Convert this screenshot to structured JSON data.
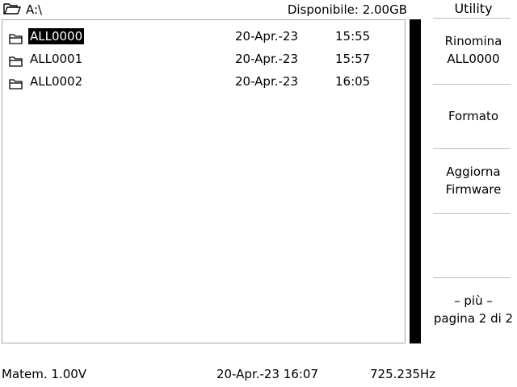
{
  "header": {
    "path": "A:\\",
    "available": "Disponibile: 2.00GB"
  },
  "files": [
    {
      "name": "ALL0000",
      "date": "20-Apr.-23",
      "time": "15:55",
      "selected": true
    },
    {
      "name": "ALL0001",
      "date": "20-Apr.-23",
      "time": "15:57",
      "selected": false
    },
    {
      "name": "ALL0002",
      "date": "20-Apr.-23",
      "time": "16:05",
      "selected": false
    }
  ],
  "menu": {
    "title": "Utility",
    "keys": [
      {
        "line1": "Rinomina",
        "line2": "ALL0000"
      },
      {
        "line1": "Formato",
        "line2": ""
      },
      {
        "line1": "Aggiorna",
        "line2": "Firmware"
      },
      {
        "line1": "",
        "line2": ""
      },
      {
        "line1": "– più –",
        "line2": "pagina 2 di 2"
      }
    ]
  },
  "footer": {
    "math": "Matem. 1.00V",
    "datetime": "20-Apr.-23 16:07",
    "frequency": "725.235Hz"
  },
  "icons": {
    "drive": "open-folder-icon",
    "file": "folder-icon"
  }
}
